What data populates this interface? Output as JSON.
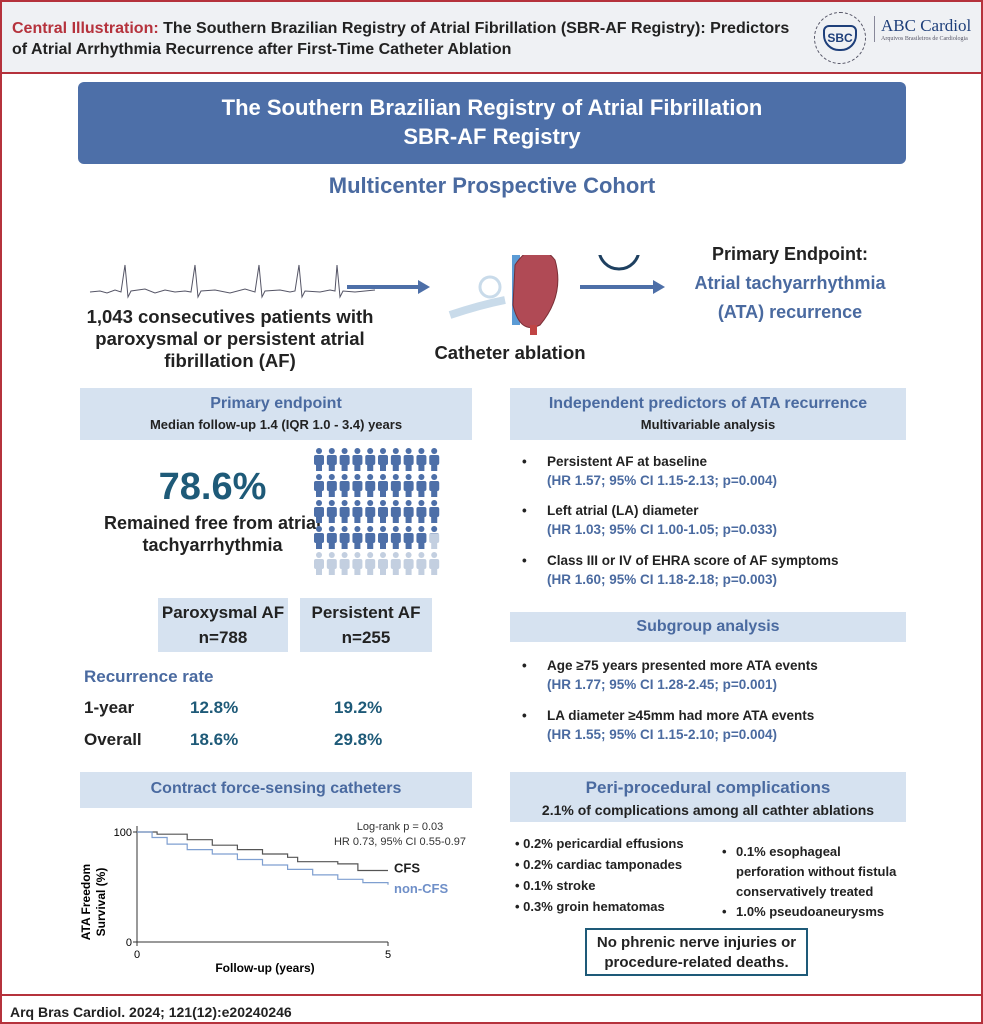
{
  "header": {
    "label": "Central Illustration:",
    "title": "The Southern Brazilian Registry of Atrial Fibrillation (SBR-AF Registry): Predictors of Atrial Arrhythmia Recurrence after First-Time Catheter Ablation",
    "logo_sbc": "SBC",
    "logo_sbc_ring": "SOCIEDADE BRASILEIRA DE CARDIOLOGIA",
    "logo_abc": "ABC Cardiol",
    "logo_abc_sub": "Arquivos Brasileiros de Cardiologia"
  },
  "banner": {
    "line1": "The Southern Brazilian Registry of Atrial Fibrillation",
    "line2": "SBR-AF Registry"
  },
  "cohort": "Multicenter Prospective Cohort",
  "flow": {
    "patients": "1,043 consecutives patients with paroxysmal or persistent atrial fibrillation (AF)",
    "ablation": "Catheter ablation",
    "endpoint_label": "Primary Endpoint:",
    "endpoint_l1": "Atrial tachyarrhythmia",
    "endpoint_l2": "(ATA) recurrence"
  },
  "primary": {
    "title": "Primary endpoint",
    "subtitle": "Median follow-up 1.4 (IQR 1.0 - 3.4) years",
    "percent": "78.6%",
    "caption": "Remained free from atrial tachyarrhythmia",
    "free_fraction": 0.786,
    "groups": [
      {
        "name": "Paroxysmal AF",
        "n": "n=788"
      },
      {
        "name": "Persistent AF",
        "n": "n=255"
      }
    ],
    "recurrence_title": "Recurrence rate",
    "rows": [
      {
        "label": "1-year",
        "values": [
          "12.8%",
          "19.2%"
        ]
      },
      {
        "label": "Overall",
        "values": [
          "18.6%",
          "29.8%"
        ]
      }
    ]
  },
  "predictors": {
    "title": "Independent predictors of ATA recurrence",
    "subtitle": "Multivariable analysis",
    "items": [
      {
        "text": "Persistent AF at baseline",
        "stats": "(HR 1.57; 95% CI 1.15-2.13; p=0.004)"
      },
      {
        "text": "Left atrial (LA) diameter",
        "stats": "(HR 1.03; 95% CI 1.00-1.05; p=0.033)"
      },
      {
        "text": "Class III or IV of EHRA score of AF symptoms",
        "stats": "(HR 1.60; 95% CI 1.18-2.18; p=0.003)"
      }
    ]
  },
  "subgroup": {
    "title": "Subgroup analysis",
    "items": [
      {
        "text": "Age ≥75 years presented more ATA events",
        "stats": "(HR 1.77; 95% CI 1.28-2.45; p=0.001)"
      },
      {
        "text": "LA diameter ≥45mm had more ATA events",
        "stats": "(HR 1.55; 95% CI 1.15-2.10; p=0.004)"
      }
    ]
  },
  "complications": {
    "title": "Peri-procedural complications",
    "subtitle": "2.1% of complications among all cathter ablations",
    "left": [
      "0.2% pericardial effusions",
      "0.2% cardiac tamponades",
      "0.1% stroke",
      "0.3% groin hematomas"
    ],
    "right": [
      "0.1% esophageal perforation without fistula conservatively treated",
      "1.0% pseudoaneurysms"
    ],
    "note": "No phrenic nerve injuries or procedure-related deaths."
  },
  "chart_data": {
    "type": "line",
    "title": "Contract force-sensing catheters",
    "xlabel": "Follow-up (years)",
    "ylabel": "ATA Freedom Survival (%)",
    "xlim": [
      0,
      5
    ],
    "ylim": [
      0,
      100
    ],
    "xticks": [
      "0",
      "5"
    ],
    "yticks": [
      "0",
      "100"
    ],
    "annotation": [
      "Log-rank p = 0.03",
      "HR 0.73, 95% CI 0.55-0.97"
    ],
    "series": [
      {
        "name": "CFS",
        "color": "#555555",
        "x": [
          0,
          0.4,
          1,
          1.5,
          2,
          2.5,
          3,
          3.2,
          4,
          4.4,
          4.4,
          5
        ],
        "y": [
          100,
          98,
          93,
          88,
          84,
          80,
          77,
          73,
          71,
          71,
          65,
          65
        ]
      },
      {
        "name": "non-CFS",
        "color": "#7f9fd0",
        "x": [
          0,
          0.3,
          0.6,
          1,
          1.5,
          2,
          2.5,
          3,
          3.5,
          4,
          4.5,
          5
        ],
        "y": [
          100,
          95,
          89,
          84,
          80,
          75,
          70,
          66,
          61,
          57,
          54,
          52
        ]
      }
    ]
  },
  "footer": "Arq Bras Cardiol. 2024; 121(12):e20240246",
  "colors": {
    "accent": "#4d6fa8",
    "panel": "#d6e2f0",
    "teal": "#1e5a78",
    "border": "#b5323c"
  }
}
